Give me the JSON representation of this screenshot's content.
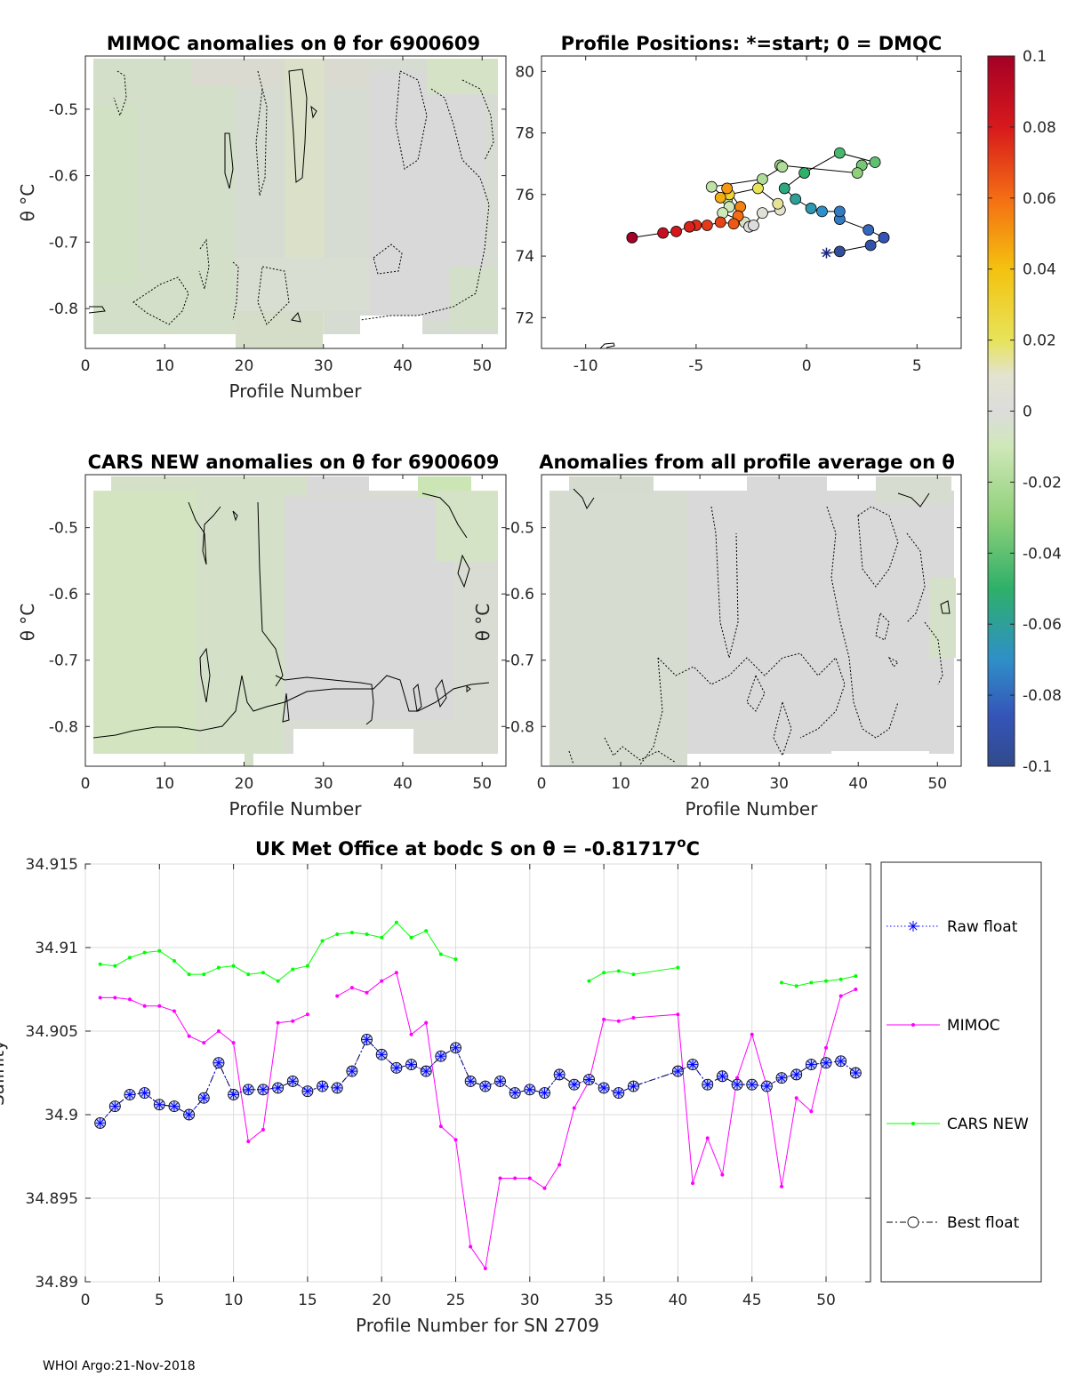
{
  "footer": "WHOI Argo:21-Nov-2018",
  "symbols": {
    "theta": "θ",
    "theta_unit": "θ °C"
  },
  "panels": {
    "mimoc": {
      "title": "MIMOC anomalies on θ  for 6900609",
      "xlabel": "Profile Number",
      "ylabel": "θ °C",
      "xlim": [
        0,
        53
      ],
      "ylim": [
        -0.86,
        -0.42
      ],
      "xticks": [
        0,
        10,
        20,
        30,
        40,
        50
      ],
      "yticks": [
        -0.5,
        -0.6,
        -0.7,
        -0.8
      ],
      "ytick_labels": [
        "-0.5",
        "-0.6",
        "-0.7",
        "-0.8"
      ]
    },
    "positions": {
      "title": "Profile Positions: *=start; 0 = DMQC",
      "xlim": [
        -12,
        7
      ],
      "ylim": [
        71,
        80.5
      ],
      "xticks": [
        -10,
        -5,
        0,
        5
      ],
      "yticks": [
        80,
        78,
        76,
        74,
        72
      ]
    },
    "cars": {
      "title": "CARS NEW anomalies on θ for 6900609",
      "xlabel": "Profile Number",
      "ylabel": "θ °C",
      "xlim": [
        0,
        53
      ],
      "ylim": [
        -0.86,
        -0.42
      ],
      "xticks": [
        0,
        10,
        20,
        30,
        40,
        50
      ],
      "yticks": [
        -0.5,
        -0.6,
        -0.7,
        -0.8
      ],
      "ytick_labels": [
        "-0.5",
        "-0.6",
        "-0.7",
        "-0.8"
      ]
    },
    "allavg": {
      "title": "Anomalies from all profile average on θ",
      "xlabel": "Profile Number",
      "ylabel": "θ °C",
      "xlim": [
        0,
        53
      ],
      "ylim": [
        -0.86,
        -0.42
      ],
      "xticks": [
        0,
        10,
        20,
        30,
        40,
        50
      ],
      "yticks": [
        -0.5,
        -0.6,
        -0.7,
        -0.8
      ],
      "ytick_labels": [
        "-0.5",
        "-0.6",
        "-0.7",
        "-0.8"
      ]
    }
  },
  "colorbar": {
    "range": [
      -0.1,
      0.1
    ],
    "ticks": [
      0.1,
      0.08,
      0.06,
      0.04,
      0.02,
      0,
      -0.02,
      -0.04,
      -0.06,
      -0.08,
      -0.1
    ],
    "tick_labels": [
      "0.1",
      "0.08",
      "0.06",
      "0.04",
      "0.02",
      "0",
      "-0.02",
      "-0.04",
      "-0.06",
      "-0.08",
      "-0.1"
    ]
  },
  "chart_data": [
    {
      "type": "scatter",
      "title": "Profile Positions: *=start; 0 = DMQC",
      "xlabel": "",
      "ylabel": "",
      "xlim": [
        -12,
        7
      ],
      "ylim": [
        71,
        80.5
      ],
      "colorscale_range": [
        -0.1,
        0.1
      ],
      "points": [
        {
          "lon": 0.9,
          "lat": 74.1,
          "v": -0.095,
          "marker": "star"
        },
        {
          "lon": 1.5,
          "lat": 74.15,
          "v": -0.095
        },
        {
          "lon": 2.9,
          "lat": 74.35,
          "v": -0.09
        },
        {
          "lon": 3.5,
          "lat": 74.6,
          "v": -0.085
        },
        {
          "lon": 2.8,
          "lat": 74.85,
          "v": -0.08
        },
        {
          "lon": 1.5,
          "lat": 75.2,
          "v": -0.075
        },
        {
          "lon": 1.5,
          "lat": 75.45,
          "v": -0.075
        },
        {
          "lon": 0.7,
          "lat": 75.45,
          "v": -0.07
        },
        {
          "lon": 0.2,
          "lat": 75.55,
          "v": -0.065
        },
        {
          "lon": -0.5,
          "lat": 75.85,
          "v": -0.06
        },
        {
          "lon": -1.0,
          "lat": 76.2,
          "v": -0.055
        },
        {
          "lon": -0.1,
          "lat": 76.7,
          "v": -0.05
        },
        {
          "lon": 1.5,
          "lat": 77.35,
          "v": -0.045
        },
        {
          "lon": 3.1,
          "lat": 77.05,
          "v": -0.04
        },
        {
          "lon": 2.5,
          "lat": 76.95,
          "v": -0.035
        },
        {
          "lon": 2.3,
          "lat": 76.7,
          "v": -0.03
        },
        {
          "lon": -1.2,
          "lat": 76.95,
          "v": -0.025
        },
        {
          "lon": -1.1,
          "lat": 76.9,
          "v": -0.02
        },
        {
          "lon": -2.0,
          "lat": 76.5,
          "v": -0.02
        },
        {
          "lon": -4.3,
          "lat": 76.25,
          "v": -0.015
        },
        {
          "lon": -3.6,
          "lat": 75.85,
          "v": -0.015
        },
        {
          "lon": -3.5,
          "lat": 75.6,
          "v": -0.01
        },
        {
          "lon": -3.8,
          "lat": 75.4,
          "v": -0.01
        },
        {
          "lon": -2.8,
          "lat": 75.1,
          "v": -0.005
        },
        {
          "lon": -2.6,
          "lat": 74.95,
          "v": 0.0
        },
        {
          "lon": -2.4,
          "lat": 75.0,
          "v": 0.0
        },
        {
          "lon": -2.0,
          "lat": 75.4,
          "v": 0.005
        },
        {
          "lon": -1.2,
          "lat": 75.5,
          "v": 0.01
        },
        {
          "lon": -1.3,
          "lat": 75.7,
          "v": 0.015
        },
        {
          "lon": -2.2,
          "lat": 76.2,
          "v": 0.02
        },
        {
          "lon": -3.5,
          "lat": 76.0,
          "v": 0.03
        },
        {
          "lon": -3.9,
          "lat": 75.9,
          "v": 0.045
        },
        {
          "lon": -3.6,
          "lat": 76.2,
          "v": 0.05
        },
        {
          "lon": -3.0,
          "lat": 75.6,
          "v": 0.055
        },
        {
          "lon": -3.1,
          "lat": 75.3,
          "v": 0.06
        },
        {
          "lon": -3.3,
          "lat": 75.05,
          "v": 0.065
        },
        {
          "lon": -3.9,
          "lat": 75.1,
          "v": 0.07
        },
        {
          "lon": -4.5,
          "lat": 75.0,
          "v": 0.072
        },
        {
          "lon": -5.0,
          "lat": 75.0,
          "v": 0.075
        },
        {
          "lon": -5.3,
          "lat": 74.95,
          "v": 0.078
        },
        {
          "lon": -5.9,
          "lat": 74.8,
          "v": 0.082
        },
        {
          "lon": -6.5,
          "lat": 74.75,
          "v": 0.088
        },
        {
          "lon": -7.9,
          "lat": 74.6,
          "v": 0.1
        }
      ]
    },
    {
      "type": "line",
      "title": "UK Met Office at bodc S on θ = -0.81717°C",
      "title_parts": {
        "left": "UK Met Office at bodc S on θ = -0.81717",
        "sup": "o",
        "right": "C"
      },
      "xlabel": "Profile Number for SN 2709",
      "ylabel": "Salinity",
      "xlim": [
        0,
        53
      ],
      "ylim": [
        34.89,
        34.915
      ],
      "xticks": [
        0,
        5,
        10,
        15,
        20,
        25,
        30,
        35,
        40,
        45,
        50
      ],
      "yticks": [
        34.89,
        34.895,
        34.9,
        34.905,
        34.91,
        34.915
      ],
      "ytick_labels": [
        "34.89",
        "34.895",
        "34.9",
        "34.905",
        "34.91",
        "34.915"
      ],
      "grid": true,
      "legend_position": "outside-right",
      "series": [
        {
          "name": "Raw float",
          "color": "#0000ff",
          "style": "dotted-star",
          "x": [
            1,
            2,
            3,
            4,
            5,
            6,
            7,
            8,
            9,
            10,
            11,
            12,
            13,
            14,
            15,
            16,
            17,
            18,
            19,
            20,
            21,
            22,
            23,
            24,
            25,
            26,
            27,
            28,
            29,
            30,
            31,
            32,
            33,
            34,
            35,
            36,
            37,
            40,
            41,
            42,
            43,
            44,
            45,
            46,
            47,
            48,
            49,
            50,
            51,
            52
          ],
          "values": [
            34.8995,
            34.9005,
            34.9012,
            34.9013,
            34.9006,
            34.9005,
            34.9,
            34.901,
            34.9031,
            34.9012,
            34.9015,
            34.9015,
            34.9016,
            34.902,
            34.9014,
            34.9017,
            34.9016,
            34.9026,
            34.9045,
            34.9036,
            34.9028,
            34.903,
            34.9026,
            34.9035,
            34.904,
            34.902,
            34.9017,
            34.902,
            34.9013,
            34.9015,
            34.9013,
            34.9024,
            34.9018,
            34.9021,
            34.9016,
            34.9013,
            34.9017,
            34.9026,
            34.903,
            34.9018,
            34.9023,
            34.9018,
            34.9018,
            34.9017,
            34.9022,
            34.9024,
            34.903,
            34.9031,
            34.9032,
            34.9025
          ]
        },
        {
          "name": "MIMOC",
          "color": "#ff00ff",
          "style": "solid-dot",
          "x": [
            1,
            2,
            3,
            4,
            5,
            6,
            7,
            8,
            9,
            10,
            11,
            12,
            13,
            14,
            15,
            null,
            17,
            18,
            19,
            20,
            21,
            22,
            23,
            24,
            25,
            26,
            27,
            28,
            29,
            30,
            31,
            32,
            33,
            34,
            35,
            36,
            37,
            40,
            41,
            42,
            43,
            44,
            45,
            46,
            47,
            48,
            49,
            50,
            51,
            52
          ],
          "values": [
            34.907,
            34.907,
            34.9069,
            34.9065,
            34.9065,
            34.9062,
            34.9047,
            34.9043,
            34.905,
            34.9043,
            34.8984,
            34.8991,
            34.9055,
            34.9056,
            34.906,
            null,
            34.9071,
            34.9076,
            34.9073,
            34.908,
            34.9085,
            34.9048,
            34.9055,
            34.8993,
            34.8985,
            34.8921,
            34.8908,
            34.8962,
            34.8962,
            34.8962,
            34.8956,
            34.897,
            34.9004,
            34.902,
            34.9057,
            34.9056,
            34.9058,
            34.906,
            34.8959,
            34.8986,
            34.8964,
            34.9022,
            34.9048,
            34.9017,
            34.8957,
            34.901,
            34.9002,
            34.904,
            34.9071,
            34.9075
          ]
        },
        {
          "name": "CARS NEW",
          "color": "#00ff00",
          "style": "solid-dot",
          "x": [
            1,
            2,
            3,
            4,
            5,
            6,
            7,
            8,
            9,
            10,
            11,
            12,
            13,
            14,
            15,
            16,
            17,
            18,
            19,
            20,
            21,
            22,
            23,
            24,
            25,
            null,
            34,
            35,
            36,
            37,
            40,
            null,
            47,
            48,
            49,
            50,
            51,
            52
          ],
          "values": [
            34.909,
            34.9089,
            34.9094,
            34.9097,
            34.9098,
            34.9092,
            34.9084,
            34.9084,
            34.9088,
            34.9089,
            34.9084,
            34.9085,
            34.908,
            34.9087,
            34.9089,
            34.9104,
            34.9108,
            34.9109,
            34.9108,
            34.9106,
            34.9115,
            34.9106,
            34.911,
            34.9096,
            34.9093,
            null,
            34.908,
            34.9085,
            34.9086,
            34.9084,
            34.9088,
            null,
            34.9079,
            34.9077,
            34.9079,
            34.908,
            34.9081,
            34.9083
          ]
        },
        {
          "name": "Best float",
          "color": "#000000",
          "style": "dashdot-circle",
          "x": [
            1,
            2,
            3,
            4,
            5,
            6,
            7,
            8,
            9,
            10,
            11,
            12,
            13,
            14,
            15,
            16,
            17,
            18,
            19,
            20,
            21,
            22,
            23,
            24,
            25,
            26,
            27,
            28,
            29,
            30,
            31,
            32,
            33,
            34,
            35,
            36,
            37,
            40,
            41,
            42,
            43,
            44,
            45,
            46,
            47,
            48,
            49,
            50,
            51,
            52
          ],
          "values": [
            34.8995,
            34.9005,
            34.9012,
            34.9013,
            34.9006,
            34.9005,
            34.9,
            34.901,
            34.9031,
            34.9012,
            34.9015,
            34.9015,
            34.9016,
            34.902,
            34.9014,
            34.9017,
            34.9016,
            34.9026,
            34.9045,
            34.9036,
            34.9028,
            34.903,
            34.9026,
            34.9035,
            34.904,
            34.902,
            34.9017,
            34.902,
            34.9013,
            34.9015,
            34.9013,
            34.9024,
            34.9018,
            34.9021,
            34.9016,
            34.9013,
            34.9017,
            34.9026,
            34.903,
            34.9018,
            34.9023,
            34.9018,
            34.9018,
            34.9017,
            34.9022,
            34.9024,
            34.903,
            34.9031,
            34.9032,
            34.9025
          ]
        }
      ]
    }
  ]
}
